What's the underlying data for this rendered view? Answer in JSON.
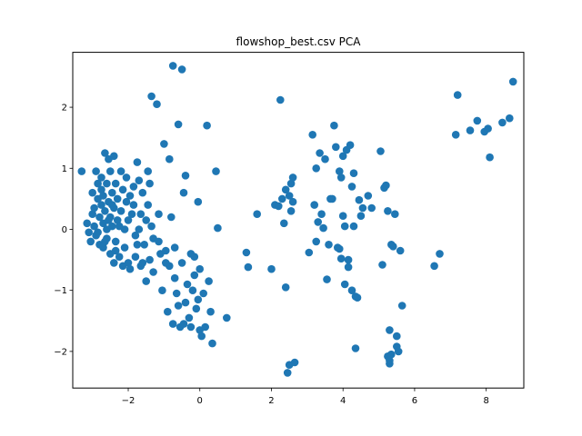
{
  "chart_data": {
    "type": "scatter",
    "title": "flowshop_best.csv PCA",
    "xlabel": "",
    "ylabel": "",
    "xlim": [
      -3.55,
      9.05
    ],
    "ylim": [
      -2.6,
      2.9
    ],
    "xticks": [
      -2,
      0,
      2,
      4,
      6,
      8
    ],
    "yticks": [
      -2,
      -1,
      0,
      1,
      2
    ],
    "grid": false,
    "color": "#1f77b4",
    "series": [
      {
        "points": [
          [
            -3.3,
            0.95
          ],
          [
            -3.15,
            0.1
          ],
          [
            -3.1,
            -0.05
          ],
          [
            -3.0,
            0.6
          ],
          [
            -3.0,
            0.25
          ],
          [
            -2.95,
            0.35
          ],
          [
            -2.95,
            0.05
          ],
          [
            -2.9,
            -0.1
          ],
          [
            -2.9,
            0.95
          ],
          [
            -2.85,
            0.75
          ],
          [
            -2.85,
            0.5
          ],
          [
            -2.8,
            0.2
          ],
          [
            -2.8,
            -0.25
          ],
          [
            -2.75,
            0.85
          ],
          [
            -2.75,
            0.65
          ],
          [
            -2.75,
            0.4
          ],
          [
            -2.7,
            0.1
          ],
          [
            -2.7,
            -0.3
          ],
          [
            -2.7,
            0.55
          ],
          [
            -2.65,
            1.25
          ],
          [
            -2.65,
            0.3
          ],
          [
            -2.6,
            0.0
          ],
          [
            -2.6,
            -0.15
          ],
          [
            -2.6,
            0.75
          ],
          [
            -2.55,
            1.15
          ],
          [
            -2.55,
            0.45
          ],
          [
            -2.5,
            0.2
          ],
          [
            -2.5,
            -0.4
          ],
          [
            -2.5,
            0.95
          ],
          [
            -2.45,
            0.6
          ],
          [
            -2.45,
            0.05
          ],
          [
            -2.4,
            -0.55
          ],
          [
            -2.4,
            1.2
          ],
          [
            -2.4,
            0.35
          ],
          [
            -2.35,
            0.75
          ],
          [
            -2.35,
            -0.2
          ],
          [
            -2.3,
            0.5
          ],
          [
            -2.3,
            0.15
          ],
          [
            -2.25,
            -0.45
          ],
          [
            -2.2,
            0.95
          ],
          [
            -2.2,
            0.3
          ],
          [
            -2.15,
            -0.6
          ],
          [
            -2.15,
            0.65
          ],
          [
            -2.1,
            0.0
          ],
          [
            -2.1,
            -0.3
          ],
          [
            -2.05,
            0.85
          ],
          [
            -2.05,
            0.45
          ],
          [
            -2.0,
            -0.55
          ],
          [
            -2.0,
            0.15
          ],
          [
            -1.95,
            -0.65
          ],
          [
            -1.95,
            0.55
          ],
          [
            -1.9,
            0.25
          ],
          [
            -1.85,
            0.7
          ],
          [
            -1.8,
            -0.1
          ],
          [
            -1.8,
            -0.45
          ],
          [
            -1.75,
            1.1
          ],
          [
            -1.7,
            0.8
          ],
          [
            -1.7,
            0.0
          ],
          [
            -1.65,
            0.25
          ],
          [
            -1.65,
            -0.6
          ],
          [
            -1.6,
            0.6
          ],
          [
            -1.55,
            -0.25
          ],
          [
            -1.5,
            0.15
          ],
          [
            -1.5,
            -0.85
          ],
          [
            -1.45,
            0.95
          ],
          [
            -1.4,
            0.75
          ],
          [
            -1.4,
            -0.5
          ],
          [
            -1.35,
            2.18
          ],
          [
            -1.35,
            0.05
          ],
          [
            -1.3,
            -0.7
          ],
          [
            -1.2,
            2.05
          ],
          [
            -1.15,
            0.25
          ],
          [
            -1.1,
            -0.4
          ],
          [
            -1.05,
            -1.0
          ],
          [
            -1.0,
            1.4
          ],
          [
            -0.95,
            -0.35
          ],
          [
            -0.9,
            -1.35
          ],
          [
            -0.85,
            1.15
          ],
          [
            -0.85,
            -0.6
          ],
          [
            -0.8,
            0.2
          ],
          [
            -0.75,
            2.68
          ],
          [
            -0.75,
            -1.55
          ],
          [
            -0.7,
            -0.8
          ],
          [
            -0.65,
            -1.05
          ],
          [
            -0.6,
            1.72
          ],
          [
            -0.55,
            -1.6
          ],
          [
            -0.5,
            2.62
          ],
          [
            -0.5,
            -0.55
          ],
          [
            -0.45,
            0.6
          ],
          [
            -0.4,
            0.88
          ],
          [
            -0.4,
            -1.2
          ],
          [
            -0.35,
            -0.9
          ],
          [
            -0.3,
            -1.45
          ],
          [
            -0.25,
            -0.4
          ],
          [
            -0.2,
            -1.0
          ],
          [
            -0.15,
            -0.75
          ],
          [
            -0.1,
            -1.3
          ],
          [
            -0.05,
            0.45
          ],
          [
            0.0,
            -1.65
          ],
          [
            0.0,
            -0.65
          ],
          [
            0.05,
            -1.75
          ],
          [
            0.1,
            -1.05
          ],
          [
            0.15,
            -1.6
          ],
          [
            0.2,
            1.7
          ],
          [
            0.25,
            -0.85
          ],
          [
            0.3,
            -1.35
          ],
          [
            0.35,
            -1.87
          ],
          [
            0.45,
            0.95
          ],
          [
            0.5,
            0.02
          ],
          [
            0.75,
            -1.45
          ],
          [
            -3.05,
            -0.2
          ],
          [
            -2.85,
            -0.05
          ],
          [
            -2.65,
            -0.2
          ],
          [
            -2.55,
            0.15
          ],
          [
            -2.45,
            0.4
          ],
          [
            -2.25,
            0.05
          ],
          [
            -2.35,
            -0.35
          ],
          [
            -1.85,
            0.4
          ],
          [
            -1.75,
            -0.25
          ],
          [
            -1.6,
            -0.55
          ],
          [
            -1.45,
            0.4
          ],
          [
            -1.3,
            -0.15
          ],
          [
            -1.15,
            -0.2
          ],
          [
            -0.95,
            -0.55
          ],
          [
            -0.7,
            -0.3
          ],
          [
            -0.6,
            -1.25
          ],
          [
            -0.45,
            -1.55
          ],
          [
            -0.25,
            -1.6
          ],
          [
            -0.15,
            -0.45
          ],
          [
            -0.05,
            -1.15
          ],
          [
            1.3,
            -0.38
          ],
          [
            1.35,
            -0.62
          ],
          [
            1.6,
            0.25
          ],
          [
            2.0,
            -0.65
          ],
          [
            2.1,
            0.4
          ],
          [
            2.2,
            0.38
          ],
          [
            2.25,
            2.12
          ],
          [
            2.3,
            0.5
          ],
          [
            2.35,
            0.1
          ],
          [
            2.4,
            0.65
          ],
          [
            2.4,
            -0.95
          ],
          [
            2.45,
            -2.35
          ],
          [
            2.5,
            0.55
          ],
          [
            2.5,
            -2.22
          ],
          [
            2.55,
            0.75
          ],
          [
            2.55,
            0.3
          ],
          [
            2.6,
            0.85
          ],
          [
            2.6,
            0.45
          ],
          [
            2.65,
            -2.18
          ],
          [
            3.05,
            -0.38
          ],
          [
            3.15,
            1.55
          ],
          [
            3.2,
            0.4
          ],
          [
            3.25,
            1.0
          ],
          [
            3.25,
            -0.2
          ],
          [
            3.3,
            0.12
          ],
          [
            3.35,
            1.25
          ],
          [
            3.4,
            0.25
          ],
          [
            3.45,
            0.02
          ],
          [
            3.5,
            1.15
          ],
          [
            3.55,
            -0.82
          ],
          [
            3.6,
            -0.25
          ],
          [
            3.65,
            0.5
          ],
          [
            3.7,
            0.5
          ],
          [
            3.75,
            1.7
          ],
          [
            3.8,
            1.35
          ],
          [
            3.85,
            -0.3
          ],
          [
            3.9,
            0.95
          ],
          [
            3.9,
            -0.32
          ],
          [
            3.95,
            0.85
          ],
          [
            3.95,
            -0.48
          ],
          [
            4.0,
            0.22
          ],
          [
            4.0,
            1.2
          ],
          [
            4.05,
            0.05
          ],
          [
            4.05,
            -0.9
          ],
          [
            4.1,
            1.3
          ],
          [
            4.15,
            -0.5
          ],
          [
            4.15,
            -0.62
          ],
          [
            4.2,
            1.38
          ],
          [
            4.25,
            0.7
          ],
          [
            4.25,
            -1.0
          ],
          [
            4.3,
            0.92
          ],
          [
            4.3,
            0.05
          ],
          [
            4.35,
            -1.1
          ],
          [
            4.35,
            -1.95
          ],
          [
            4.4,
            -1.12
          ],
          [
            4.45,
            0.48
          ],
          [
            4.5,
            0.22
          ],
          [
            4.55,
            0.35
          ],
          [
            4.7,
            0.55
          ],
          [
            4.8,
            0.35
          ],
          [
            5.05,
            1.28
          ],
          [
            5.1,
            -0.58
          ],
          [
            5.15,
            0.68
          ],
          [
            5.2,
            0.72
          ],
          [
            5.25,
            0.3
          ],
          [
            5.25,
            -2.08
          ],
          [
            5.3,
            -1.65
          ],
          [
            5.3,
            -2.2
          ],
          [
            5.35,
            -0.25
          ],
          [
            5.35,
            -2.05
          ],
          [
            5.4,
            -0.28
          ],
          [
            5.45,
            0.25
          ],
          [
            5.5,
            -1.75
          ],
          [
            5.5,
            -1.92
          ],
          [
            5.55,
            -2.0
          ],
          [
            5.6,
            -0.35
          ],
          [
            5.65,
            -1.25
          ],
          [
            6.55,
            -0.6
          ],
          [
            6.7,
            -0.4
          ],
          [
            7.15,
            1.55
          ],
          [
            7.2,
            2.2
          ],
          [
            7.55,
            1.62
          ],
          [
            7.75,
            1.78
          ],
          [
            7.95,
            1.6
          ],
          [
            8.05,
            1.65
          ],
          [
            8.1,
            1.18
          ],
          [
            8.45,
            1.75
          ],
          [
            8.65,
            1.82
          ],
          [
            8.75,
            2.42
          ],
          [
            5.3,
            -2.15
          ]
        ]
      }
    ]
  }
}
